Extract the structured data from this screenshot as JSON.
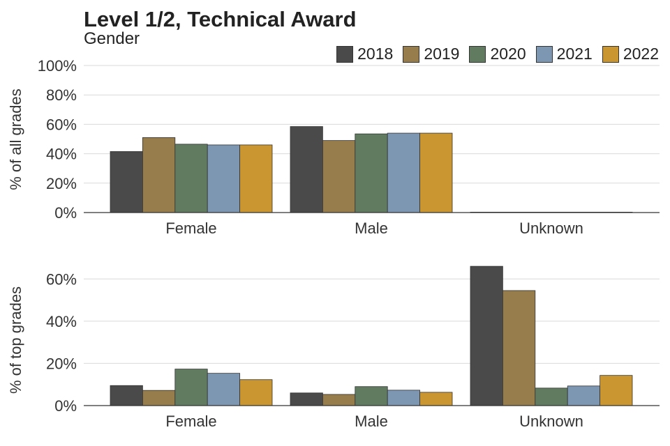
{
  "chart_data": [
    {
      "type": "bar",
      "title": "Level 1/2, Technical Award",
      "subtitle": "Gender",
      "ylabel": "% of all grades",
      "xlabel": "",
      "categories": [
        "Female",
        "Male",
        "Unknown"
      ],
      "ylim": [
        0,
        100
      ],
      "yticks": [
        "0%",
        "20%",
        "40%",
        "60%",
        "80%",
        "100%"
      ],
      "ytick_values": [
        0,
        20,
        40,
        60,
        80,
        100
      ],
      "grid": true,
      "legend": "top-right",
      "series": [
        {
          "name": "2018",
          "color": "#4a4a4a",
          "values": [
            41.5,
            58.5,
            0.05
          ]
        },
        {
          "name": "2019",
          "color": "#967d4b",
          "values": [
            51,
            49,
            0.05
          ]
        },
        {
          "name": "2020",
          "color": "#607b60",
          "values": [
            46.5,
            53.5,
            0.05
          ]
        },
        {
          "name": "2021",
          "color": "#7d96b1",
          "values": [
            46,
            54,
            0.05
          ]
        },
        {
          "name": "2022",
          "color": "#c99632",
          "values": [
            46,
            54,
            0.05
          ]
        }
      ]
    },
    {
      "type": "bar",
      "ylabel": "% of top grades",
      "xlabel": "",
      "categories": [
        "Female",
        "Male",
        "Unknown"
      ],
      "ylim": [
        0,
        70
      ],
      "yticks": [
        "0%",
        "20%",
        "40%",
        "60%"
      ],
      "ytick_values": [
        0,
        20,
        40,
        60
      ],
      "grid": true,
      "series": [
        {
          "name": "2018",
          "color": "#4a4a4a",
          "values": [
            9.5,
            6,
            66
          ]
        },
        {
          "name": "2019",
          "color": "#967d4b",
          "values": [
            7.2,
            5.3,
            54.5
          ]
        },
        {
          "name": "2020",
          "color": "#607b60",
          "values": [
            17.3,
            9,
            8.3
          ]
        },
        {
          "name": "2021",
          "color": "#7d96b1",
          "values": [
            15.3,
            7.3,
            9.3
          ]
        },
        {
          "name": "2022",
          "color": "#c99632",
          "values": [
            12.3,
            6.3,
            14.3
          ]
        }
      ]
    }
  ]
}
